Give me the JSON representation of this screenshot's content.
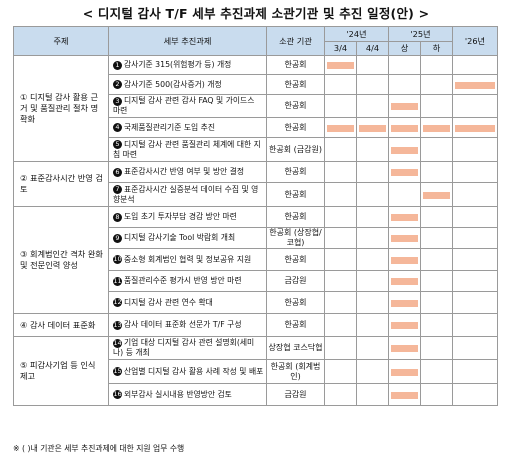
{
  "title": "< 디지털 감사 T/F 세부 추진과제 소관기관 및 추진 일정(안) >",
  "headers": {
    "theme": "주제",
    "task": "세부 추진과제",
    "agency": "소관 기관",
    "y24": "'24년",
    "y25": "'25년",
    "y26": "'26년",
    "q1": "3/4",
    "q2": "4/4",
    "q3": "상",
    "q4": "하"
  },
  "bar_color": "#f5b79a",
  "header_color": "#c9dcee",
  "groups": [
    {
      "theme": "① 디지털 감사 활용 근거 및 품질관리 절차 명확화",
      "rows": [
        {
          "num": "1",
          "task": "감사기준 315(위험평가 등) 개정",
          "agency": "한공회",
          "schedule": [
            1,
            0,
            0,
            0,
            0
          ]
        },
        {
          "num": "2",
          "task": "감사기준 500(감사증거) 개정",
          "agency": "한공회",
          "schedule": [
            0,
            0,
            0,
            0,
            1
          ]
        },
        {
          "num": "3",
          "task": "디지털 감사 관련 감사 FAQ 및 가이드스 마련",
          "agency": "한공회",
          "schedule": [
            0,
            0,
            1,
            0,
            0
          ]
        },
        {
          "num": "4",
          "task": "국제품질관리기준 도입 추진",
          "agency": "한공회",
          "schedule": [
            1,
            1,
            1,
            1,
            1
          ]
        },
        {
          "num": "5",
          "task": "디지털 감사 관련 품질관리 체계에 대한 지침 마련",
          "agency": "한공회 (금감원)",
          "schedule": [
            0,
            0,
            1,
            0,
            0
          ]
        }
      ]
    },
    {
      "theme": "② 표준감사시간 반영 검토",
      "rows": [
        {
          "num": "6",
          "task": "표준감사시간 반영 여부 및 방안 결정",
          "agency": "한공회",
          "schedule": [
            0,
            0,
            1,
            0,
            0
          ]
        },
        {
          "num": "7",
          "task": "표준감사시간 실증분석 데이터 수집 및 영향분석",
          "agency": "한공회",
          "schedule": [
            0,
            0,
            0,
            1,
            0
          ]
        }
      ]
    },
    {
      "theme": "③ 회계법인간 격차 완화 및 전문인력 양성",
      "rows": [
        {
          "num": "8",
          "task": "도입 초기 투자부담 경감 방안 마련",
          "agency": "한공회",
          "schedule": [
            0,
            0,
            1,
            0,
            0
          ]
        },
        {
          "num": "9",
          "task": "디지털 감사기술 Tool 박람회 개최",
          "agency": "한공회 (상장협/코협)",
          "schedule": [
            0,
            0,
            1,
            0,
            0
          ]
        },
        {
          "num": "10",
          "task": "중소형 회계법인 협력 및 정보공유 지원",
          "agency": "한공회",
          "schedule": [
            0,
            0,
            1,
            0,
            0
          ]
        },
        {
          "num": "11",
          "task": "품질관리수준 평가시 반영 방안 마련",
          "agency": "금감원",
          "schedule": [
            0,
            0,
            1,
            0,
            0
          ]
        },
        {
          "num": "12",
          "task": "디지털 감사 관련 연수 확대",
          "agency": "한공회",
          "schedule": [
            0,
            0,
            1,
            0,
            0
          ]
        }
      ]
    },
    {
      "theme": "④ 감사 데이터 표준화",
      "rows": [
        {
          "num": "13",
          "task": "감사 데이터 표준화 선문가 T/F 구성",
          "agency": "한공회",
          "schedule": [
            0,
            0,
            1,
            0,
            0
          ]
        }
      ]
    },
    {
      "theme": "⑤ 피감사기업 등 인식 제고",
      "rows": [
        {
          "num": "14",
          "task": "기업 대상 디지털 감사 관련 설명회(세미나) 등 개최",
          "agency": "상장협 코스닥협",
          "schedule": [
            0,
            0,
            1,
            0,
            0
          ]
        },
        {
          "num": "15",
          "task": "산업별 디지털 감사 활용 사례 작성 및 배포",
          "agency": "한공회 (회계법인)",
          "schedule": [
            0,
            0,
            1,
            0,
            0
          ]
        },
        {
          "num": "16",
          "task": "외부감사 실시내용 반영방안 검토",
          "agency": "금감원",
          "schedule": [
            0,
            0,
            1,
            0,
            0
          ]
        }
      ]
    }
  ],
  "footnote": "※ ( )내 기관은 세부 추진과제에 대한 지원 업무 수행"
}
